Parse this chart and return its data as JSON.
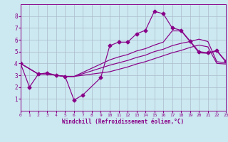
{
  "background_color": "#cce8f0",
  "grid_color": "#aabbcc",
  "line_color": "#880088",
  "xlabel": "Windchill (Refroidissement éolien,°C)",
  "xlim": [
    0,
    23
  ],
  "ylim": [
    0,
    9
  ],
  "xticks": [
    0,
    1,
    2,
    3,
    4,
    5,
    6,
    7,
    8,
    9,
    10,
    11,
    12,
    13,
    14,
    15,
    16,
    17,
    18,
    19,
    20,
    21,
    22,
    23
  ],
  "yticks": [
    1,
    2,
    3,
    4,
    5,
    6,
    7,
    8
  ],
  "line1_x": [
    0,
    1,
    2,
    3,
    4,
    5,
    6,
    7,
    9,
    10,
    11,
    12,
    13,
    14,
    15,
    16,
    17,
    18,
    19,
    20,
    21,
    22,
    23
  ],
  "line1_y": [
    4.0,
    2.0,
    3.1,
    3.2,
    3.0,
    2.9,
    0.9,
    1.35,
    2.8,
    5.5,
    5.8,
    5.8,
    6.5,
    6.8,
    8.4,
    8.2,
    7.0,
    6.8,
    5.9,
    5.0,
    4.9,
    5.1,
    4.2
  ],
  "line2_x": [
    0,
    2,
    3,
    4,
    5,
    6,
    10,
    11,
    12,
    13,
    14,
    15,
    16,
    17,
    18,
    19,
    20,
    21,
    22,
    23
  ],
  "line2_y": [
    4.0,
    3.1,
    3.1,
    3.0,
    2.9,
    2.9,
    3.85,
    4.05,
    4.25,
    4.5,
    4.7,
    5.0,
    5.2,
    5.5,
    5.7,
    5.85,
    6.05,
    5.85,
    4.15,
    4.05
  ],
  "line3_x": [
    0,
    2,
    3,
    4,
    5,
    6,
    10,
    11,
    12,
    13,
    14,
    15,
    16,
    17,
    18,
    19,
    20,
    21,
    22,
    23
  ],
  "line3_y": [
    4.0,
    3.1,
    3.1,
    3.0,
    2.9,
    2.9,
    4.3,
    4.55,
    4.75,
    5.05,
    5.25,
    5.55,
    5.8,
    6.75,
    6.75,
    5.85,
    4.9,
    4.85,
    5.05,
    4.15
  ],
  "line4_x": [
    0,
    2,
    3,
    4,
    5,
    6,
    10,
    11,
    12,
    13,
    14,
    15,
    16,
    17,
    18,
    19,
    20,
    21,
    22,
    23
  ],
  "line4_y": [
    4.0,
    3.1,
    3.1,
    3.0,
    2.9,
    2.9,
    3.3,
    3.5,
    3.7,
    3.95,
    4.15,
    4.4,
    4.65,
    4.9,
    5.1,
    5.35,
    5.55,
    5.4,
    4.0,
    3.95
  ]
}
